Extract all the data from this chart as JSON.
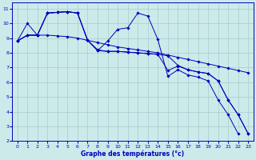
{
  "xlabel": "Graphe des températures (°c)",
  "bg_color": "#cceaea",
  "grid_color": "#aacccc",
  "line_color": "#0000bb",
  "xlim": [
    -0.5,
    23.5
  ],
  "ylim": [
    2,
    11.4
  ],
  "xticks": [
    0,
    1,
    2,
    3,
    4,
    5,
    6,
    7,
    8,
    9,
    10,
    11,
    12,
    13,
    14,
    15,
    16,
    17,
    18,
    19,
    20,
    21,
    22,
    23
  ],
  "yticks": [
    2,
    3,
    4,
    5,
    6,
    7,
    8,
    9,
    10,
    11
  ],
  "series": [
    [
      8.8,
      9.2,
      9.2,
      9.2,
      9.15,
      9.1,
      9.0,
      8.85,
      8.7,
      8.55,
      8.4,
      8.3,
      8.2,
      8.1,
      8.0,
      7.85,
      7.7,
      7.55,
      7.4,
      7.25,
      7.1,
      6.95,
      6.8,
      6.65
    ],
    [
      8.8,
      10.0,
      9.2,
      10.7,
      10.75,
      10.8,
      10.7,
      8.85,
      8.2,
      8.1,
      8.1,
      8.05,
      8.0,
      7.95,
      7.9,
      6.8,
      7.1,
      6.85,
      6.7,
      6.6,
      6.1,
      4.8,
      3.8,
      2.5
    ],
    [
      8.8,
      9.2,
      9.2,
      10.7,
      10.75,
      10.8,
      10.7,
      8.85,
      8.15,
      8.8,
      9.6,
      9.7,
      10.7,
      10.5,
      8.9,
      6.4,
      6.85,
      6.5,
      6.35,
      6.1,
      4.8,
      3.8,
      2.5,
      null
    ],
    [
      8.8,
      9.2,
      9.2,
      10.7,
      10.75,
      10.8,
      10.7,
      8.85,
      8.15,
      8.1,
      8.1,
      8.05,
      8.0,
      7.95,
      7.9,
      7.8,
      7.15,
      6.85,
      6.7,
      6.6,
      6.1,
      4.8,
      3.8,
      2.5
    ]
  ]
}
